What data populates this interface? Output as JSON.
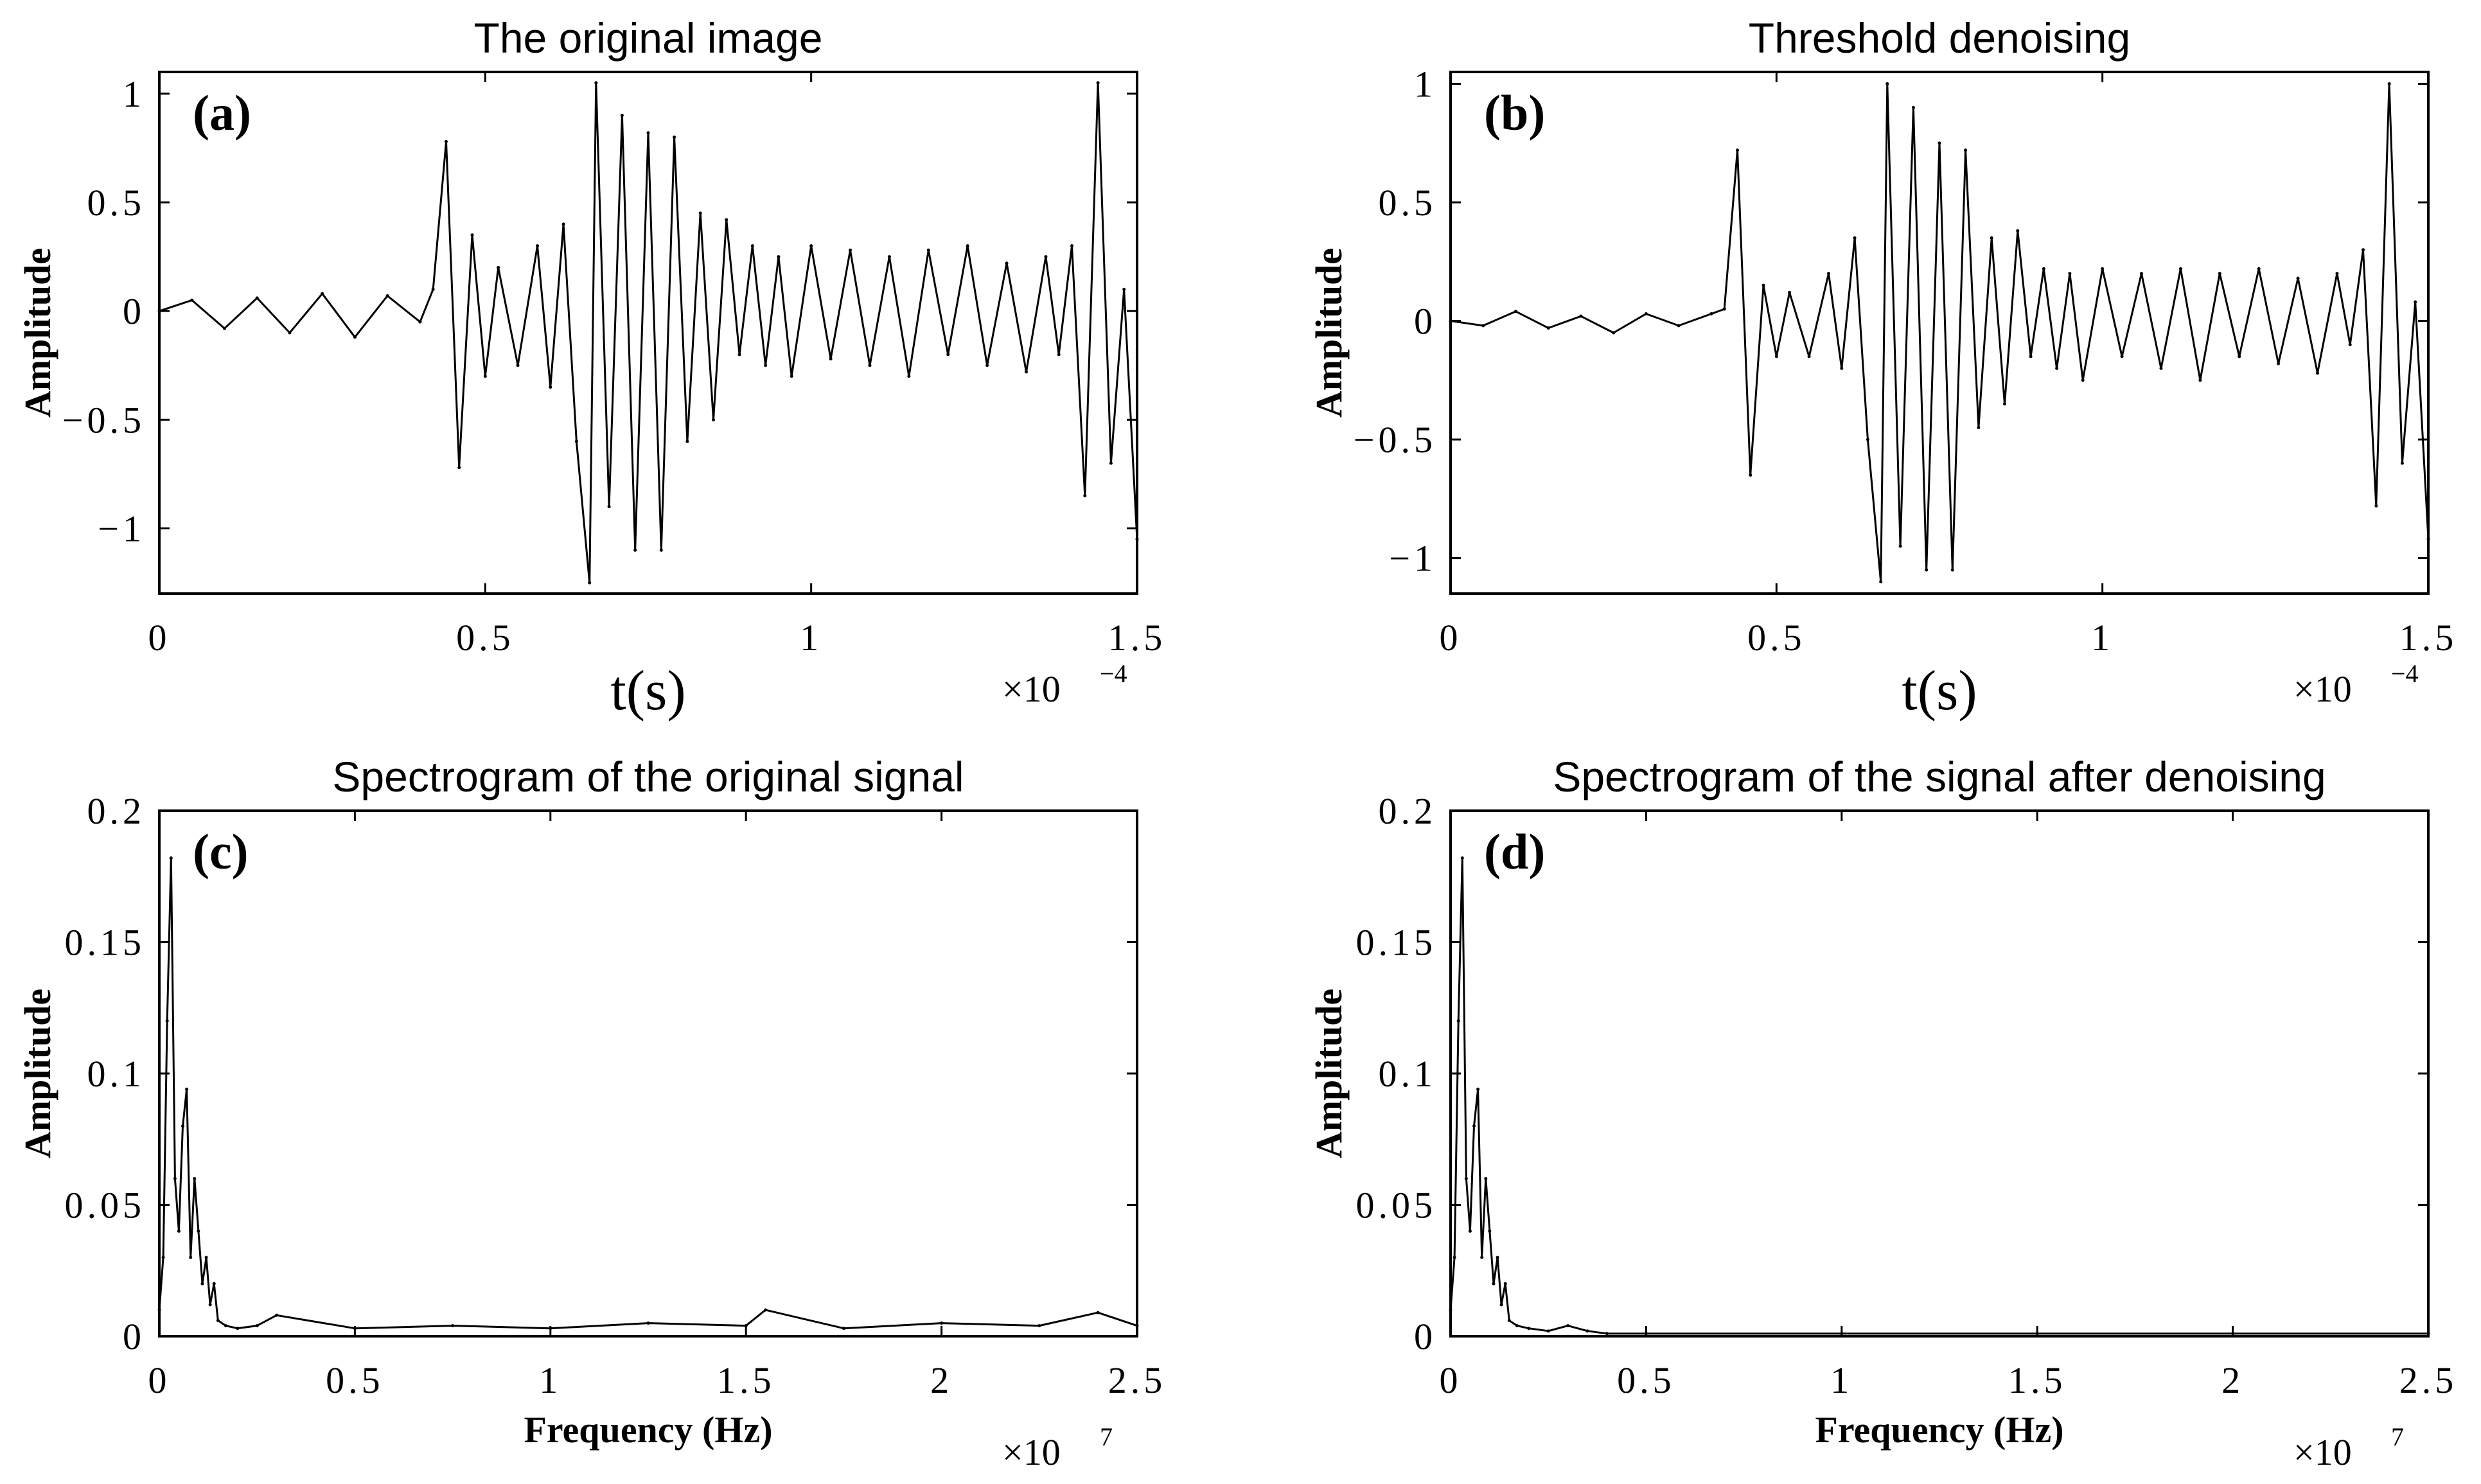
{
  "chart_data": [
    {
      "type": "line",
      "panel_label": "(a)",
      "title": "The original image",
      "xlabel": "t(s)",
      "ylabel": "Amplitude",
      "x_multiplier": "×10",
      "x_multiplier_exp": "−4",
      "xlim": [
        0,
        1.5
      ],
      "ylim": [
        -1.3,
        1.1
      ],
      "x_ticks": [
        "0",
        "0.5",
        "1",
        "1.5"
      ],
      "x_tick_values": [
        0,
        0.5,
        1,
        1.5
      ],
      "y_ticks": [
        "1",
        "0.5",
        "0",
        "−0.5",
        "−1"
      ],
      "y_tick_values": [
        1,
        0.5,
        0,
        -0.5,
        -1
      ],
      "x": [
        0,
        0.05,
        0.1,
        0.15,
        0.2,
        0.25,
        0.3,
        0.35,
        0.4,
        0.42,
        0.44,
        0.46,
        0.48,
        0.5,
        0.52,
        0.55,
        0.58,
        0.6,
        0.62,
        0.64,
        0.66,
        0.67,
        0.69,
        0.71,
        0.73,
        0.75,
        0.77,
        0.79,
        0.81,
        0.83,
        0.85,
        0.87,
        0.89,
        0.91,
        0.93,
        0.95,
        0.97,
        1.0,
        1.03,
        1.06,
        1.09,
        1.12,
        1.15,
        1.18,
        1.21,
        1.24,
        1.27,
        1.3,
        1.33,
        1.36,
        1.38,
        1.4,
        1.42,
        1.44,
        1.46,
        1.48,
        1.5
      ],
      "values": [
        0.0,
        0.05,
        -0.08,
        0.06,
        -0.1,
        0.08,
        -0.12,
        0.07,
        -0.05,
        0.1,
        0.78,
        -0.72,
        0.35,
        -0.3,
        0.2,
        -0.25,
        0.3,
        -0.35,
        0.4,
        -0.6,
        -1.25,
        1.05,
        -0.9,
        0.9,
        -1.1,
        0.82,
        -1.1,
        0.8,
        -0.6,
        0.45,
        -0.5,
        0.42,
        -0.2,
        0.3,
        -0.25,
        0.25,
        -0.3,
        0.3,
        -0.22,
        0.28,
        -0.25,
        0.25,
        -0.3,
        0.28,
        -0.2,
        0.3,
        -0.25,
        0.22,
        -0.28,
        0.25,
        -0.2,
        0.3,
        -0.85,
        1.05,
        -0.7,
        0.1,
        -1.05
      ]
    },
    {
      "type": "line",
      "panel_label": "(b)",
      "title": "Threshold denoising",
      "xlabel": "t(s)",
      "ylabel": "Amplitude",
      "x_multiplier": "×10",
      "x_multiplier_exp": "−4",
      "xlim": [
        0,
        1.5
      ],
      "ylim": [
        -1.15,
        1.05
      ],
      "x_ticks": [
        "0",
        "0.5",
        "1",
        "1.5"
      ],
      "x_tick_values": [
        0,
        0.5,
        1,
        1.5
      ],
      "y_ticks": [
        "1",
        "0.5",
        "0",
        "−0.5",
        "−1"
      ],
      "y_tick_values": [
        1,
        0.5,
        0,
        -0.5,
        -1
      ],
      "x": [
        0,
        0.05,
        0.1,
        0.15,
        0.2,
        0.25,
        0.3,
        0.35,
        0.4,
        0.42,
        0.44,
        0.46,
        0.48,
        0.5,
        0.52,
        0.55,
        0.58,
        0.6,
        0.62,
        0.64,
        0.66,
        0.67,
        0.69,
        0.71,
        0.73,
        0.75,
        0.77,
        0.79,
        0.81,
        0.83,
        0.85,
        0.87,
        0.89,
        0.91,
        0.93,
        0.95,
        0.97,
        1.0,
        1.03,
        1.06,
        1.09,
        1.12,
        1.15,
        1.18,
        1.21,
        1.24,
        1.27,
        1.3,
        1.33,
        1.36,
        1.38,
        1.4,
        1.42,
        1.44,
        1.46,
        1.48,
        1.5
      ],
      "values": [
        0.0,
        -0.02,
        0.04,
        -0.03,
        0.02,
        -0.05,
        0.03,
        -0.02,
        0.03,
        0.05,
        0.72,
        -0.65,
        0.15,
        -0.15,
        0.12,
        -0.15,
        0.2,
        -0.2,
        0.35,
        -0.5,
        -1.1,
        1.0,
        -0.95,
        0.9,
        -1.05,
        0.75,
        -1.05,
        0.72,
        -0.45,
        0.35,
        -0.35,
        0.38,
        -0.15,
        0.22,
        -0.2,
        0.2,
        -0.25,
        0.22,
        -0.15,
        0.2,
        -0.2,
        0.22,
        -0.25,
        0.2,
        -0.15,
        0.22,
        -0.18,
        0.18,
        -0.22,
        0.2,
        -0.1,
        0.3,
        -0.78,
        1.0,
        -0.6,
        0.08,
        -0.92
      ]
    },
    {
      "type": "line",
      "panel_label": "(c)",
      "title": "Spectrogram of the original signal",
      "xlabel": "Frequency (Hz)",
      "ylabel": "Amplitude",
      "x_multiplier": "×10",
      "x_multiplier_exp": "7",
      "xlim": [
        0,
        2.5
      ],
      "ylim": [
        0,
        0.2
      ],
      "x_ticks": [
        "0",
        "0.5",
        "1",
        "1.5",
        "2",
        "2.5"
      ],
      "x_tick_values": [
        0,
        0.5,
        1,
        1.5,
        2,
        2.5
      ],
      "y_ticks": [
        "0.2",
        "0.15",
        "0.1",
        "0.05",
        "0"
      ],
      "y_tick_values": [
        0.2,
        0.15,
        0.1,
        0.05,
        0
      ],
      "x": [
        0,
        0.01,
        0.02,
        0.03,
        0.04,
        0.05,
        0.06,
        0.07,
        0.08,
        0.09,
        0.1,
        0.11,
        0.12,
        0.13,
        0.14,
        0.15,
        0.17,
        0.2,
        0.25,
        0.3,
        0.5,
        0.75,
        1.0,
        1.25,
        1.5,
        1.55,
        1.75,
        2.0,
        2.25,
        2.4,
        2.5
      ],
      "values": [
        0.01,
        0.03,
        0.12,
        0.182,
        0.06,
        0.04,
        0.08,
        0.094,
        0.03,
        0.06,
        0.04,
        0.02,
        0.03,
        0.012,
        0.02,
        0.006,
        0.004,
        0.003,
        0.004,
        0.008,
        0.003,
        0.004,
        0.003,
        0.005,
        0.004,
        0.01,
        0.003,
        0.005,
        0.004,
        0.009,
        0.004
      ]
    },
    {
      "type": "line",
      "panel_label": "(d)",
      "title": "Spectrogram of the signal after denoising",
      "xlabel": "Frequency (Hz)",
      "ylabel": "Amplitude",
      "x_multiplier": "×10",
      "x_multiplier_exp": "7",
      "xlim": [
        0,
        2.5
      ],
      "ylim": [
        0,
        0.2
      ],
      "x_ticks": [
        "0",
        "0.5",
        "1",
        "1.5",
        "2",
        "2.5"
      ],
      "x_tick_values": [
        0,
        0.5,
        1,
        1.5,
        2,
        2.5
      ],
      "y_ticks": [
        "0.2",
        "0.15",
        "0.1",
        "0.05",
        "0"
      ],
      "y_tick_values": [
        0.2,
        0.15,
        0.1,
        0.05,
        0
      ],
      "x": [
        0,
        0.01,
        0.02,
        0.03,
        0.04,
        0.05,
        0.06,
        0.07,
        0.08,
        0.09,
        0.1,
        0.11,
        0.12,
        0.13,
        0.14,
        0.15,
        0.17,
        0.2,
        0.25,
        0.3,
        0.35,
        0.4,
        0.5,
        1.0,
        1.5,
        2.0,
        2.5
      ],
      "values": [
        0.01,
        0.03,
        0.12,
        0.182,
        0.06,
        0.04,
        0.08,
        0.094,
        0.03,
        0.06,
        0.04,
        0.02,
        0.03,
        0.012,
        0.02,
        0.006,
        0.004,
        0.003,
        0.002,
        0.004,
        0.002,
        0.001,
        0.001,
        0.001,
        0.001,
        0.001,
        0.001
      ]
    }
  ]
}
